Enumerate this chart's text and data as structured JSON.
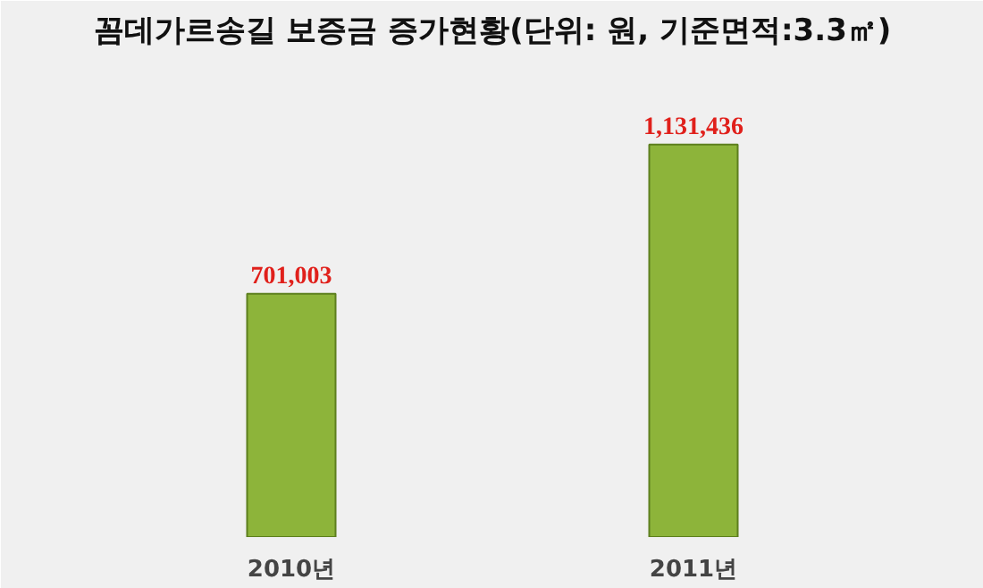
{
  "chart_data": {
    "type": "bar",
    "title": "꼼데가르송길 보증금 증가현황(단위: 원, 기준면적:3.3㎡)",
    "categories": [
      "2010년",
      "2011년"
    ],
    "values": [
      701003,
      1131436
    ],
    "value_labels": [
      "701,003",
      "1,131,436"
    ],
    "color": "#8db43a",
    "grid": false
  }
}
